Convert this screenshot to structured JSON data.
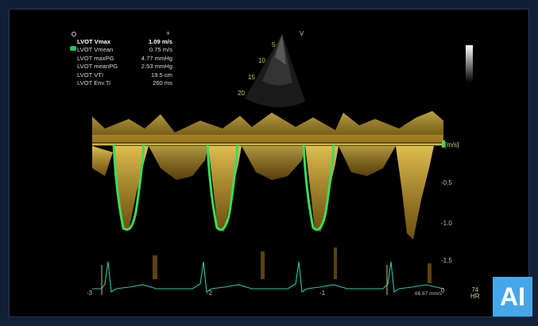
{
  "measurements": {
    "rows": [
      {
        "label": "LVOT Vmax",
        "value": "1.09 m/s"
      },
      {
        "label": "LVOT Vmean",
        "value": "0.75 m/s"
      },
      {
        "label": "LVOT maxPG",
        "value": "4.77 mmHg"
      },
      {
        "label": "LVOT meanPG",
        "value": "2.53 mmHg"
      },
      {
        "label": "LVOT VTI",
        "value": "19.5 cm"
      },
      {
        "label": "LVOT Env.Ti",
        "value": "260 ms"
      }
    ]
  },
  "sector": {
    "label_v": "V",
    "depth_marks": [
      "5",
      "10",
      "15",
      "20"
    ]
  },
  "doppler": {
    "unit": "[m/s]",
    "y_ticks": [
      "-0.5",
      "-1.0",
      "-1.5"
    ]
  },
  "ecg": {
    "time_marks": [
      "-3",
      "-2",
      "-1",
      "0"
    ],
    "speed": "66.67 mm/s",
    "hr_value": "74",
    "hr_label": "HR"
  },
  "badge": {
    "text": "AI"
  },
  "colors": {
    "spectral": "#f2c12e",
    "envelope": "#3ddc5a",
    "ecg": "#28c7a8"
  }
}
